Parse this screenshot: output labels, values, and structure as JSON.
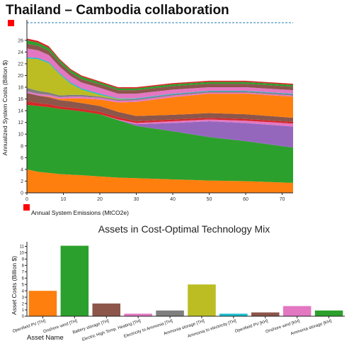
{
  "page": {
    "title": "Thailand – Cambodia collaboration"
  },
  "colors": {
    "handle": "#ff0000",
    "dashed_line": "#1f77b4"
  },
  "chart_data": [
    {
      "type": "area",
      "title": "",
      "xlabel": "Annual System Emissions (MtCO2e)",
      "ylabel": "Annualized System Costs (Billion $)",
      "xlim": [
        0,
        73
      ],
      "ylim": [
        0,
        29
      ],
      "xticks": [
        0,
        10,
        20,
        30,
        40,
        50,
        60,
        70
      ],
      "yticks": [
        0,
        2,
        4,
        6,
        8,
        10,
        12,
        14,
        16,
        18,
        20,
        22,
        24,
        26
      ],
      "grid": false,
      "reference_line": 29,
      "x": [
        0,
        3,
        6,
        9,
        12,
        15,
        20,
        25,
        30,
        40,
        50,
        60,
        73
      ],
      "series": [
        {
          "color": "#ff7f0e",
          "values": [
            4.0,
            3.6,
            3.4,
            3.2,
            3.1,
            3.0,
            2.8,
            2.6,
            2.5,
            2.3,
            2.1,
            2.0,
            1.7
          ]
        },
        {
          "color": "#2ca02c",
          "values": [
            11.0,
            11.2,
            11.2,
            11.1,
            11.0,
            10.9,
            10.6,
            9.8,
            8.9,
            8.2,
            7.4,
            6.8,
            6.0
          ]
        },
        {
          "color": "#9467bd",
          "values": [
            0.0,
            0.0,
            0.0,
            0.0,
            0.0,
            0.0,
            0.0,
            0.0,
            0.3,
            1.4,
            2.7,
            3.1,
            3.6
          ]
        },
        {
          "color": "#e377c2",
          "values": [
            0.0,
            0.0,
            0.0,
            0.0,
            0.0,
            0.0,
            0.0,
            0.1,
            0.2,
            0.3,
            0.3,
            0.4,
            0.5
          ]
        },
        {
          "color": "#d62728",
          "values": [
            0.6,
            0.5,
            0.5,
            0.4,
            0.4,
            0.4,
            0.4,
            0.4,
            0.3,
            0.3,
            0.3,
            0.3,
            0.3
          ]
        },
        {
          "color": "#8c564b",
          "values": [
            1.4,
            1.3,
            1.2,
            1.1,
            1.1,
            1.0,
            1.0,
            0.9,
            0.9,
            0.8,
            0.8,
            0.8,
            0.7
          ]
        },
        {
          "color": "#ff7f0e",
          "values": [
            0.0,
            0.0,
            0.1,
            0.2,
            0.5,
            0.8,
            1.1,
            1.6,
            2.4,
            3.0,
            3.3,
            3.5,
            3.6
          ]
        },
        {
          "color": "#e377c2",
          "values": [
            0.3,
            0.3,
            0.3,
            0.3,
            0.3,
            0.3,
            0.3,
            0.3,
            0.3,
            0.3,
            0.2,
            0.2,
            0.2
          ]
        },
        {
          "color": "#7f7f7f",
          "values": [
            0.6,
            0.5,
            0.4,
            0.3,
            0.3,
            0.3,
            0.2,
            0.2,
            0.2,
            0.2,
            0.2,
            0.2,
            0.2
          ]
        },
        {
          "color": "#bcbd22",
          "values": [
            5.0,
            5.4,
            5.0,
            3.6,
            1.9,
            0.9,
            0.3,
            0.1,
            0.0,
            0.0,
            0.0,
            0.0,
            0.0
          ]
        },
        {
          "color": "#17becf",
          "values": [
            0.2,
            0.2,
            0.2,
            0.2,
            0.2,
            0.2,
            0.2,
            0.1,
            0.1,
            0.1,
            0.1,
            0.1,
            0.1
          ]
        },
        {
          "color": "#e377c2",
          "values": [
            1.5,
            1.3,
            1.2,
            1.1,
            1.1,
            1.0,
            1.0,
            0.8,
            0.8,
            0.7,
            0.6,
            0.6,
            0.6
          ]
        },
        {
          "color": "#8c564b",
          "values": [
            0.8,
            0.8,
            0.7,
            0.7,
            0.6,
            0.6,
            0.6,
            0.6,
            0.6,
            0.6,
            0.6,
            0.6,
            0.6
          ]
        },
        {
          "color": "#2ca02c",
          "values": [
            0.6,
            0.5,
            0.5,
            0.4,
            0.4,
            0.4,
            0.3,
            0.3,
            0.3,
            0.3,
            0.3,
            0.3,
            0.3
          ]
        },
        {
          "color": "#d62728",
          "values": [
            0.3,
            0.3,
            0.3,
            0.2,
            0.2,
            0.2,
            0.2,
            0.2,
            0.2,
            0.2,
            0.2,
            0.2,
            0.2
          ]
        }
      ]
    },
    {
      "type": "bar",
      "title": "Assets in Cost-Optimal Technology Mix",
      "xlabel": "Asset Name",
      "ylabel": "Asset Costs (Billion $)",
      "ylim": [
        0,
        11.5
      ],
      "yticks": [
        0,
        1,
        2,
        3,
        4,
        5,
        6,
        7,
        8,
        9,
        10,
        11
      ],
      "grid": false,
      "categories": [
        "Openfield PV [TH]",
        "Onshore wind [TH]",
        "Battery storage [TH]",
        "Electric High Temp. Heating [TH]",
        "Electricity to Ammonia [TH]",
        "Ammonia storage [TH]",
        "Ammonia to electricity [TH]",
        "Openfield PV [KH]",
        "Onshore wind [KH]",
        "Ammonia storage [KH]"
      ],
      "values": [
        4.0,
        11.1,
        2.0,
        0.4,
        0.9,
        5.0,
        0.4,
        0.6,
        1.6,
        0.9
      ],
      "colors": [
        "#ff7f0e",
        "#2ca02c",
        "#8c564b",
        "#e377c2",
        "#7f7f7f",
        "#bcbd22",
        "#17becf",
        "#8c564b",
        "#e377c2",
        "#2ca02c"
      ]
    }
  ]
}
